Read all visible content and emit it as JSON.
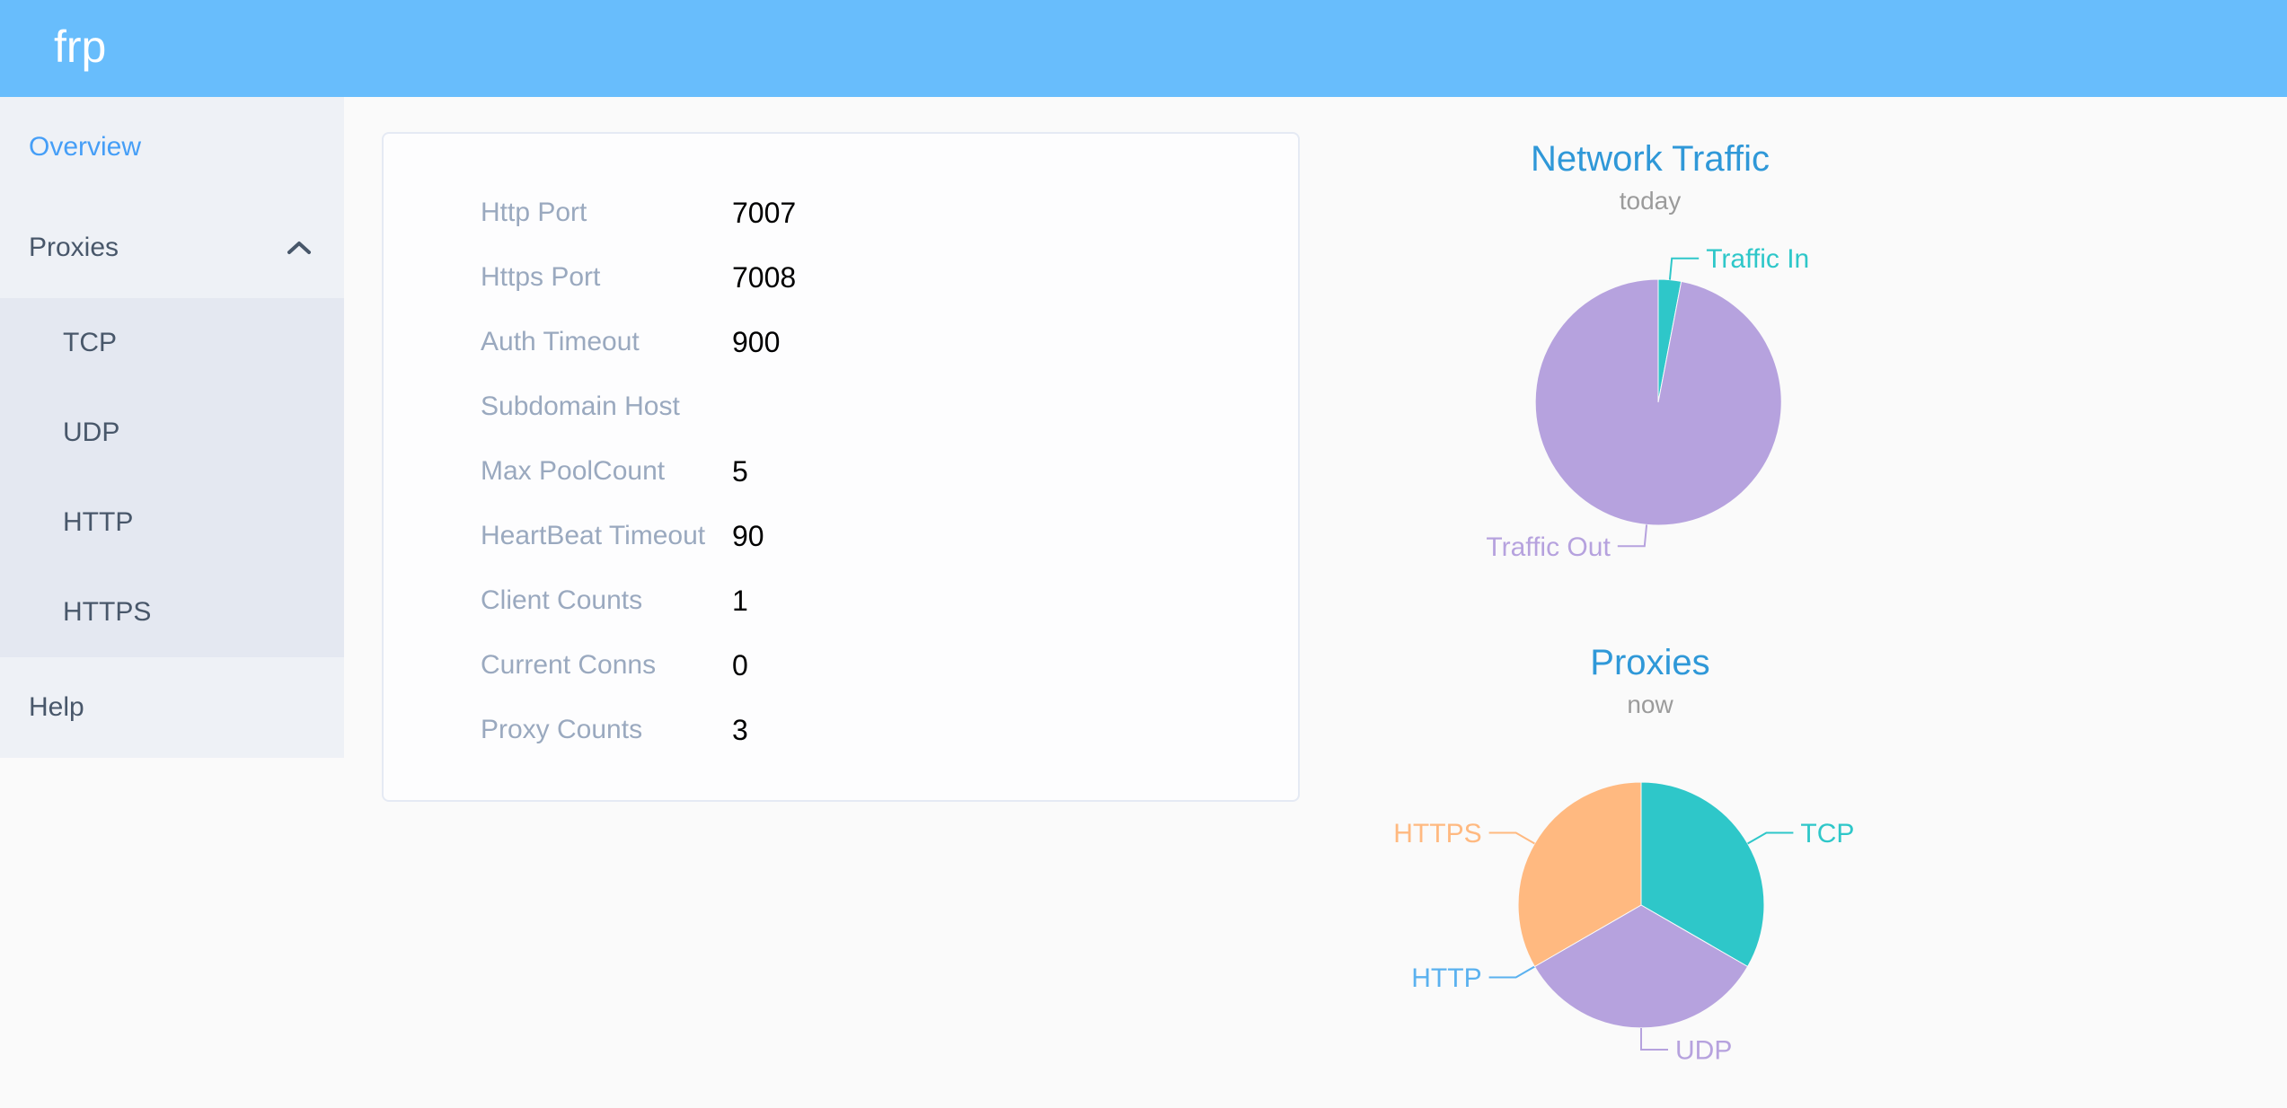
{
  "header": {
    "logo": "frp"
  },
  "sidebar": {
    "items": [
      {
        "label": "Overview",
        "active": true
      },
      {
        "label": "Proxies",
        "expanded": true,
        "children": [
          "TCP",
          "UDP",
          "HTTP",
          "HTTPS"
        ]
      },
      {
        "label": "Help"
      }
    ]
  },
  "overview_card": {
    "rows": [
      {
        "label": "Http Port",
        "value": "7007"
      },
      {
        "label": "Https Port",
        "value": "7008"
      },
      {
        "label": "Auth Timeout",
        "value": "900"
      },
      {
        "label": "Subdomain Host",
        "value": ""
      },
      {
        "label": "Max PoolCount",
        "value": "5"
      },
      {
        "label": "HeartBeat Timeout",
        "value": "90"
      },
      {
        "label": "Client Counts",
        "value": "1"
      },
      {
        "label": "Current Conns",
        "value": "0"
      },
      {
        "label": "Proxy Counts",
        "value": "3"
      }
    ]
  },
  "chart_data": [
    {
      "type": "pie",
      "title": "Network Traffic",
      "subtitle": "today",
      "legend_position": "callout-labels",
      "series": [
        {
          "name": "Traffic In",
          "value": 3,
          "color": "#2ec7c9"
        },
        {
          "name": "Traffic Out",
          "value": 97,
          "color": "#b6a2de"
        }
      ]
    },
    {
      "type": "pie",
      "title": "Proxies",
      "subtitle": "now",
      "legend_position": "callout-labels",
      "series": [
        {
          "name": "TCP",
          "value": 1,
          "color": "#2ec7c9"
        },
        {
          "name": "UDP",
          "value": 1,
          "color": "#b6a2de"
        },
        {
          "name": "HTTP",
          "value": 0,
          "color": "#5ab1ef"
        },
        {
          "name": "HTTPS",
          "value": 1,
          "color": "#ffb980"
        }
      ]
    }
  ],
  "colors": {
    "header_bg": "#68bdfc",
    "logo_text": "#ffffff",
    "sidebar_bg": "#eef1f6",
    "submenu_bg": "#e4e8f1",
    "menu_text": "#48576a",
    "active_menu": "#459ef7",
    "label_gray": "#9aa9bf",
    "value_text": "#000000",
    "chart_title": "#2f98d8",
    "subtitle_gray": "#9b9b9b",
    "page_bg": "#fafafa",
    "card_border": "#e5eaf4"
  }
}
